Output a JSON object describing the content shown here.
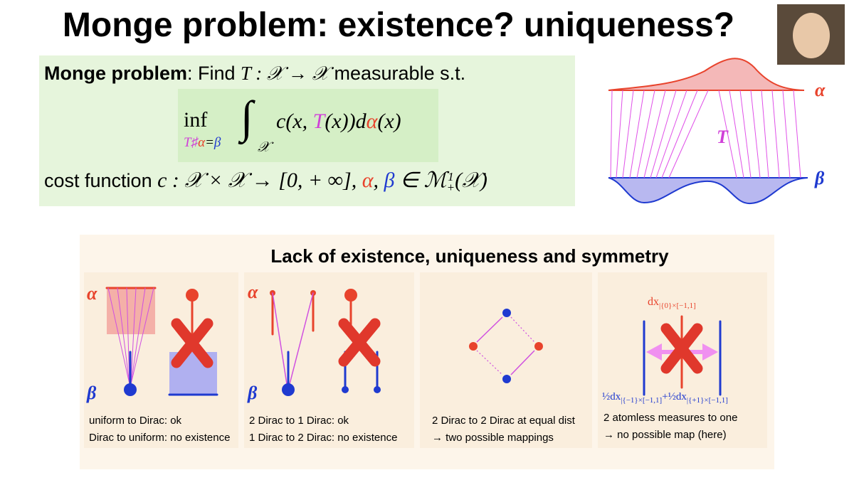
{
  "header": {
    "title": "Monge problem: existence? uniqueness?"
  },
  "definition": {
    "label": "Monge problem",
    "text": ": Find ",
    "map": "T : 𝒳 → 𝒳",
    "tail": " measurable s.t.",
    "formula": {
      "inf": "inf",
      "sub_T": "T♯",
      "sub_alpha": "α",
      "sub_eq": "=",
      "sub_beta": "β",
      "integral": "∫",
      "domain": "𝒳",
      "c_open": "c(x, ",
      "T": "T",
      "mid": "(x))d",
      "alpha": "α",
      "close": "(x)"
    },
    "cost": {
      "text": "cost function ",
      "math": "c : 𝒳 × 𝒳 → [0, + ∞], ",
      "alpha": "α",
      "comma": ", ",
      "beta": "β",
      "in": " ∈ ℳ",
      "sup": "1",
      "sub": "+",
      "end": "(𝒳)"
    }
  },
  "diagram": {
    "alpha": "α",
    "beta": "β",
    "T": "T"
  },
  "section": {
    "title": "Lack of existence, uniqueness and symmetry",
    "panels": [
      {
        "alpha": "α",
        "beta": "β",
        "lines": [
          "uniform to Dirac: ok",
          "Dirac to uniform: no existence"
        ]
      },
      {
        "alpha": "α",
        "beta": "β",
        "lines": [
          "2 Dirac to 1 Dirac: ok",
          "1 Dirac to 2 Dirac: no existence"
        ]
      },
      {
        "lines": [
          "2 Dirac to 2 Dirac at equal dist",
          "→ two possible mappings"
        ]
      },
      {
        "top": "dx",
        "top_sub": "|{0}×[−1,1]",
        "left": "½dx",
        "left_sub": "|{−1}×[−1,1]",
        "plus": "+",
        "right": "½dx",
        "right_sub": "|{+1}×[−1,1]",
        "lines": [
          "2 atomless measures to one",
          "→ no possible map (here)"
        ]
      }
    ]
  }
}
